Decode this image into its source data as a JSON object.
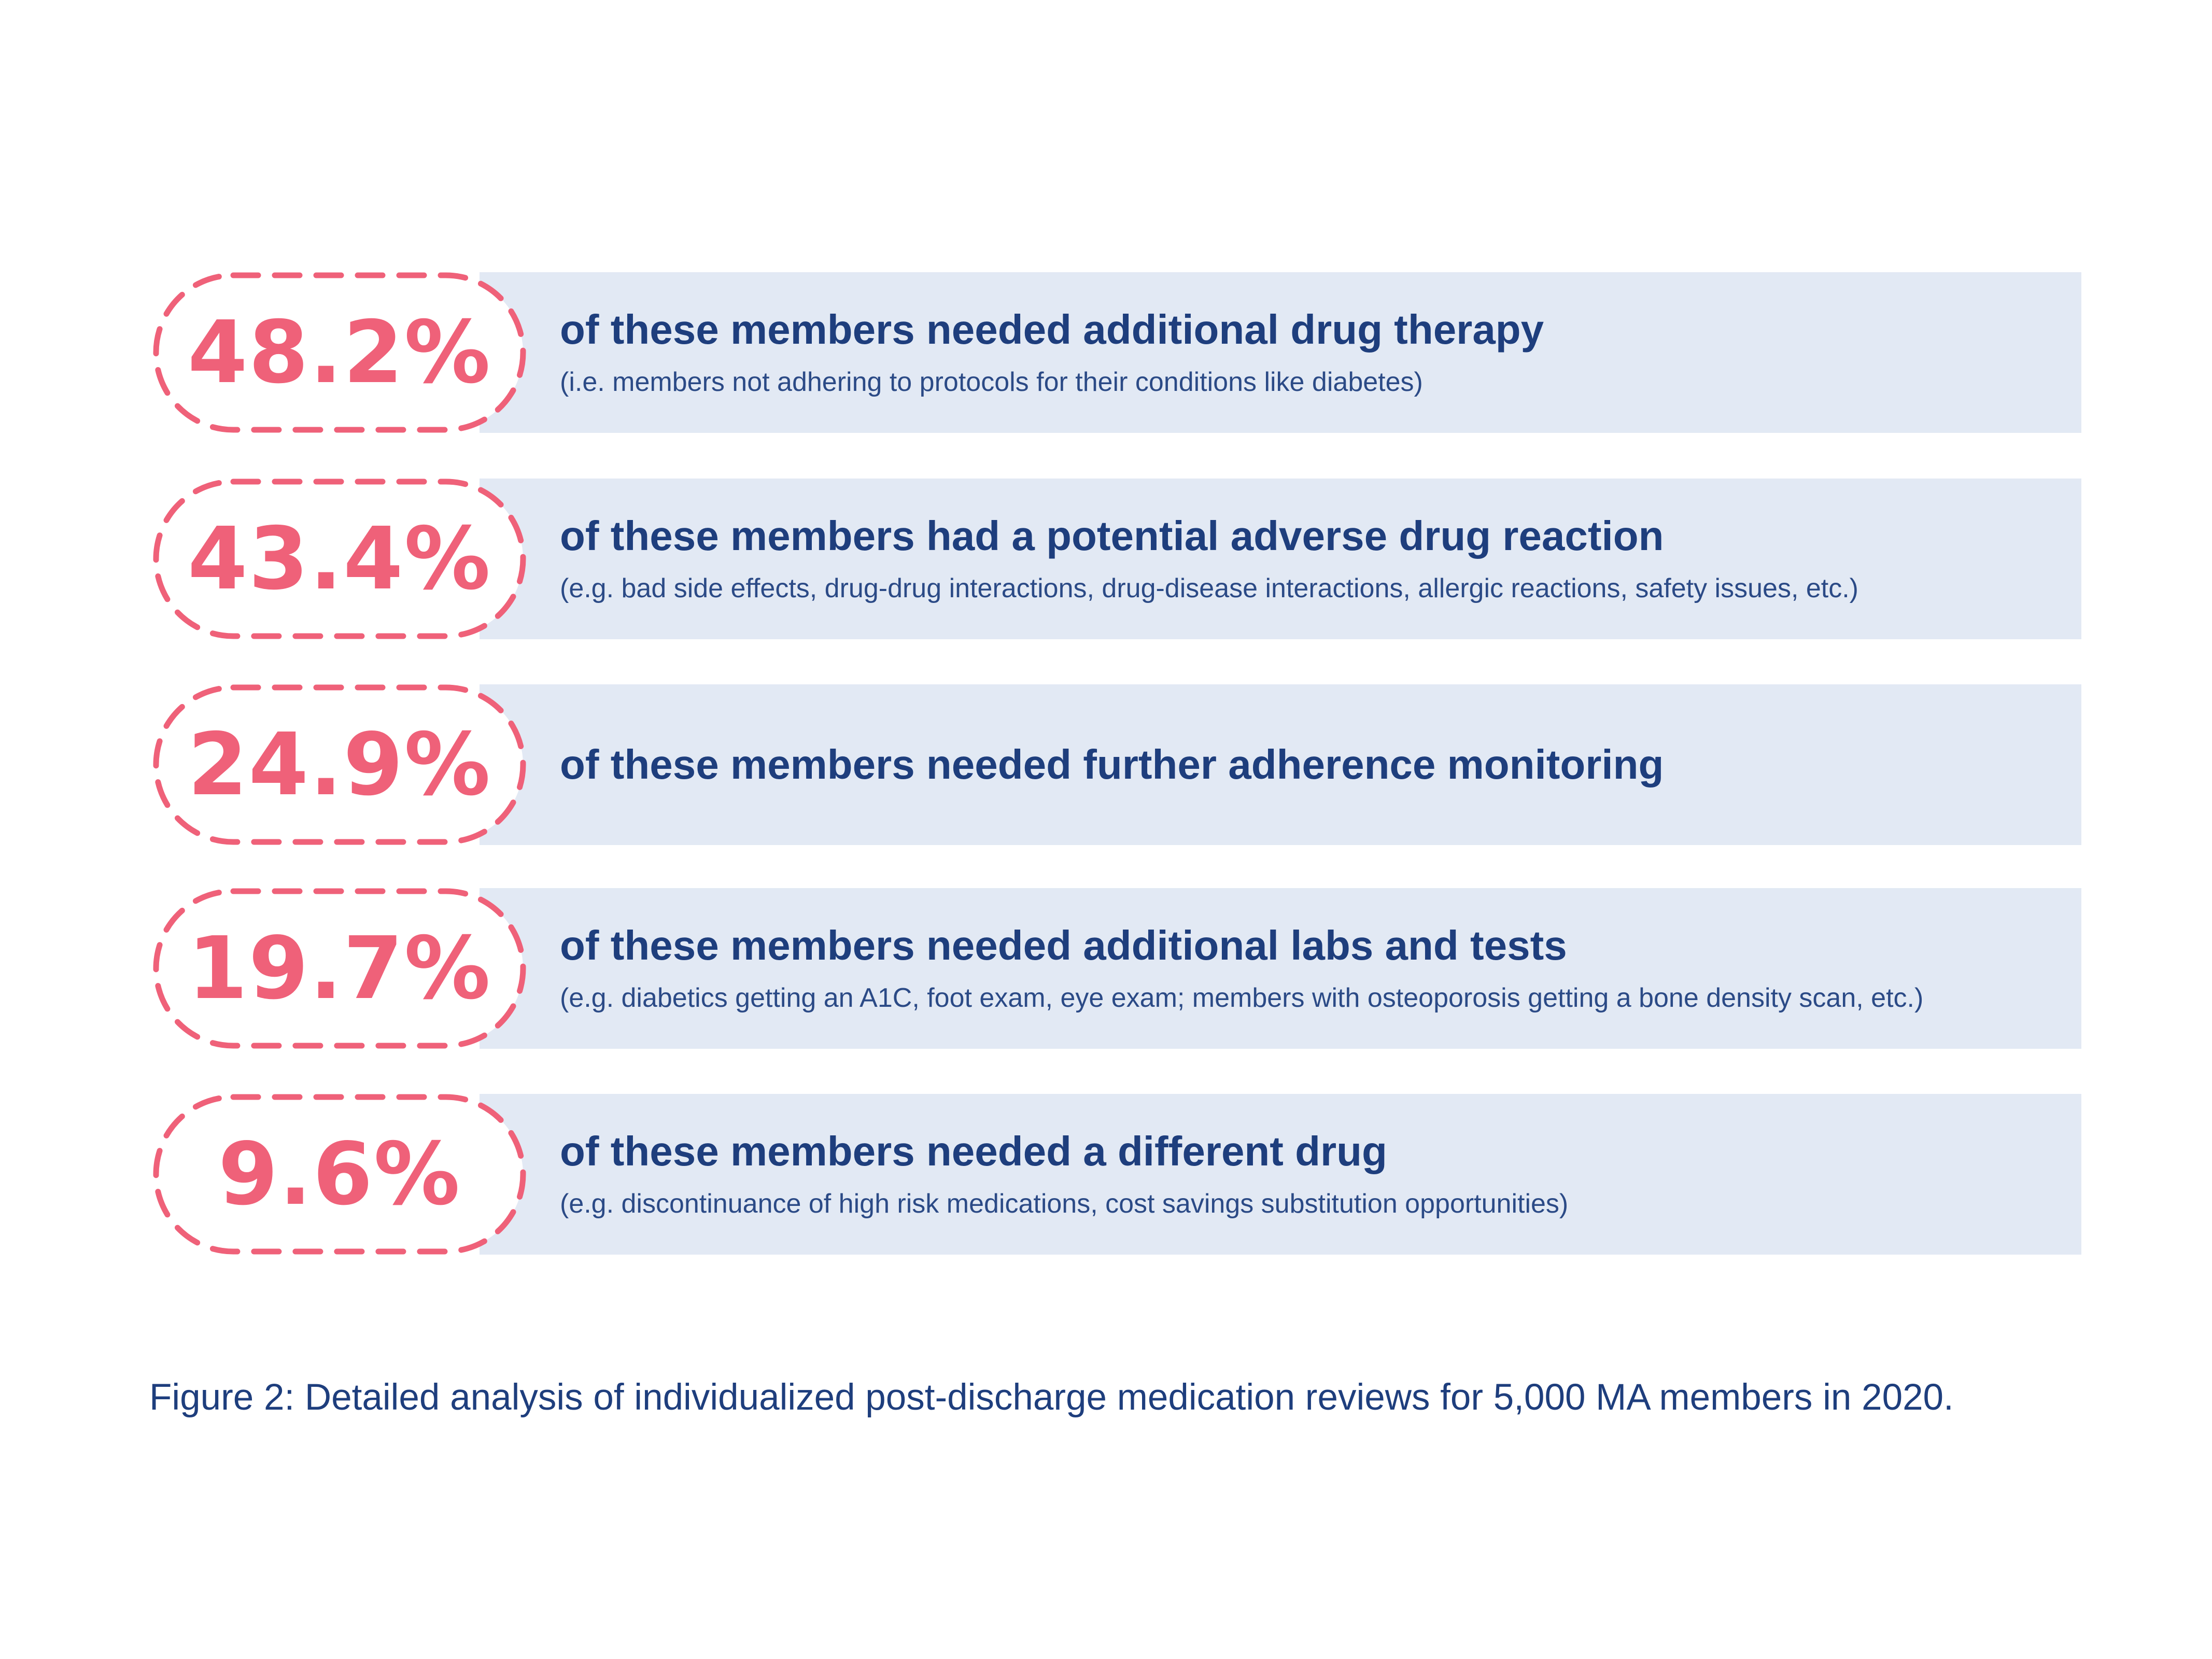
{
  "colors": {
    "accent": "#ef6179",
    "text": "#1e3e7d",
    "band": "#e2e9f4"
  },
  "chart_data": {
    "type": "table",
    "unit": "%",
    "rows": [
      {
        "value": 48.2,
        "label": "48.2%",
        "headline": "of these members needed additional drug therapy",
        "detail": "(i.e. members not adhering to protocols for their conditions like diabetes)"
      },
      {
        "value": 43.4,
        "label": "43.4%",
        "headline": "of these members had a potential adverse drug reaction",
        "detail": "(e.g. bad side effects, drug-drug interactions, drug-disease interactions, allergic reactions, safety issues, etc.)"
      },
      {
        "value": 24.9,
        "label": "24.9%",
        "headline": "of these members needed further adherence monitoring",
        "detail": ""
      },
      {
        "value": 19.7,
        "label": "19.7%",
        "headline": "of these members needed additional labs and tests",
        "detail": "(e.g. diabetics getting an A1C, foot exam, eye exam; members with osteoporosis getting a bone density scan, etc.)"
      },
      {
        "value": 9.6,
        "label": "9.6%",
        "headline": "of these members needed a different drug",
        "detail": "(e.g. discontinuance of high risk medications, cost savings substitution opportunities)"
      }
    ],
    "caption": "Figure 2: Detailed analysis of individualized post-discharge medication reviews for 5,000 MA members in 2020."
  }
}
